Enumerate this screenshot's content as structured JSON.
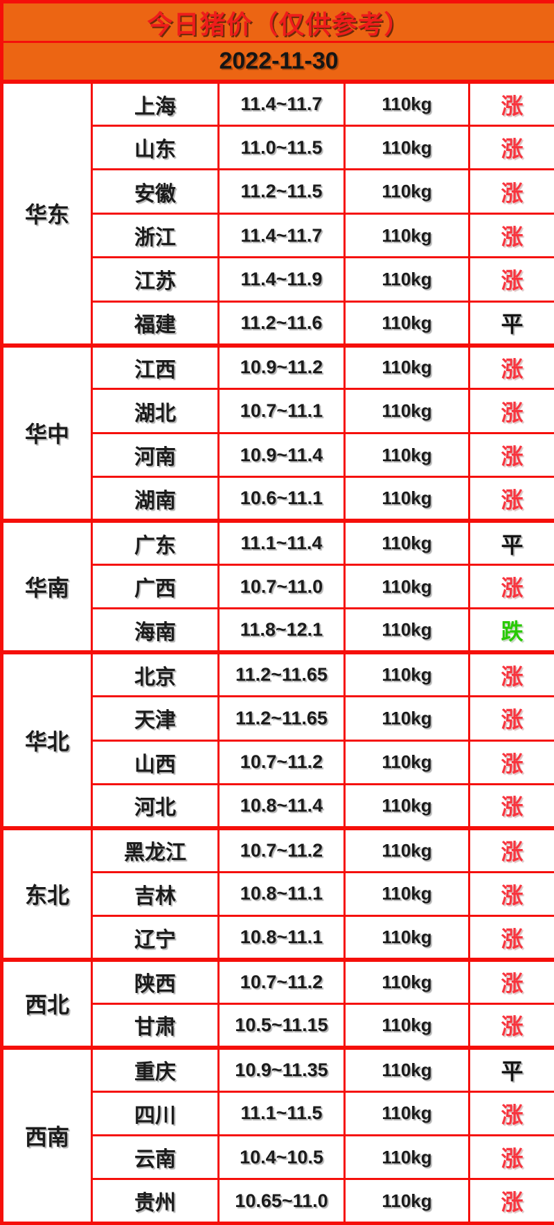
{
  "header": {
    "title": "今日猪价（仅供参考）",
    "date": "2022-11-30"
  },
  "colors": {
    "banner_bg": "#ec6513",
    "grid_red": "#f50f0a",
    "title_red": "#ee1c1b",
    "text_black": "#1b1b1b",
    "trend_up_red": "#f8353f",
    "trend_flat_black": "#141414",
    "trend_down_green": "#28ca00"
  },
  "table": {
    "weight_label": "110kg",
    "regions": [
      {
        "name": "华东",
        "provinces": [
          {
            "province": "上海",
            "price": "11.4~11.7",
            "weight": "110kg",
            "trend": "涨"
          },
          {
            "province": "山东",
            "price": "11.0~11.5",
            "weight": "110kg",
            "trend": "涨"
          },
          {
            "province": "安徽",
            "price": "11.2~11.5",
            "weight": "110kg",
            "trend": "涨"
          },
          {
            "province": "浙江",
            "price": "11.4~11.7",
            "weight": "110kg",
            "trend": "涨"
          },
          {
            "province": "江苏",
            "price": "11.4~11.9",
            "weight": "110kg",
            "trend": "涨"
          },
          {
            "province": "福建",
            "price": "11.2~11.6",
            "weight": "110kg",
            "trend": "平"
          }
        ]
      },
      {
        "name": "华中",
        "provinces": [
          {
            "province": "江西",
            "price": "10.9~11.2",
            "weight": "110kg",
            "trend": "涨"
          },
          {
            "province": "湖北",
            "price": "10.7~11.1",
            "weight": "110kg",
            "trend": "涨"
          },
          {
            "province": "河南",
            "price": "10.9~11.4",
            "weight": "110kg",
            "trend": "涨"
          },
          {
            "province": "湖南",
            "price": "10.6~11.1",
            "weight": "110kg",
            "trend": "涨"
          }
        ]
      },
      {
        "name": "华南",
        "provinces": [
          {
            "province": "广东",
            "price": "11.1~11.4",
            "weight": "110kg",
            "trend": "平"
          },
          {
            "province": "广西",
            "price": "10.7~11.0",
            "weight": "110kg",
            "trend": "涨"
          },
          {
            "province": "海南",
            "price": "11.8~12.1",
            "weight": "110kg",
            "trend": "跌"
          }
        ]
      },
      {
        "name": "华北",
        "provinces": [
          {
            "province": "北京",
            "price": "11.2~11.65",
            "weight": "110kg",
            "trend": "涨"
          },
          {
            "province": "天津",
            "price": "11.2~11.65",
            "weight": "110kg",
            "trend": "涨"
          },
          {
            "province": "山西",
            "price": "10.7~11.2",
            "weight": "110kg",
            "trend": "涨"
          },
          {
            "province": "河北",
            "price": "10.8~11.4",
            "weight": "110kg",
            "trend": "涨"
          }
        ]
      },
      {
        "name": "东北",
        "provinces": [
          {
            "province": "黑龙江",
            "price": "10.7~11.2",
            "weight": "110kg",
            "trend": "涨"
          },
          {
            "province": "吉林",
            "price": "10.8~11.1",
            "weight": "110kg",
            "trend": "涨"
          },
          {
            "province": "辽宁",
            "price": "10.8~11.1",
            "weight": "110kg",
            "trend": "涨"
          }
        ]
      },
      {
        "name": "西北",
        "provinces": [
          {
            "province": "陕西",
            "price": "10.7~11.2",
            "weight": "110kg",
            "trend": "涨"
          },
          {
            "province": "甘肃",
            "price": "10.5~11.15",
            "weight": "110kg",
            "trend": "涨"
          }
        ]
      },
      {
        "name": "西南",
        "provinces": [
          {
            "province": "重庆",
            "price": "10.9~11.35",
            "weight": "110kg",
            "trend": "平"
          },
          {
            "province": "四川",
            "price": "11.1~11.5",
            "weight": "110kg",
            "trend": "涨"
          },
          {
            "province": "云南",
            "price": "10.4~10.5",
            "weight": "110kg",
            "trend": "涨"
          },
          {
            "province": "贵州",
            "price": "10.65~11.0",
            "weight": "110kg",
            "trend": "涨"
          }
        ]
      }
    ]
  },
  "chart_data": {
    "type": "table",
    "title": "今日猪价（仅供参考）",
    "date": "2022-11-30",
    "columns": [
      "region",
      "province",
      "price_range",
      "weight",
      "trend"
    ],
    "rows": [
      [
        "华东",
        "上海",
        "11.4~11.7",
        "110kg",
        "涨"
      ],
      [
        "华东",
        "山东",
        "11.0~11.5",
        "110kg",
        "涨"
      ],
      [
        "华东",
        "安徽",
        "11.2~11.5",
        "110kg",
        "涨"
      ],
      [
        "华东",
        "浙江",
        "11.4~11.7",
        "110kg",
        "涨"
      ],
      [
        "华东",
        "江苏",
        "11.4~11.9",
        "110kg",
        "涨"
      ],
      [
        "华东",
        "福建",
        "11.2~11.6",
        "110kg",
        "平"
      ],
      [
        "华中",
        "江西",
        "10.9~11.2",
        "110kg",
        "涨"
      ],
      [
        "华中",
        "湖北",
        "10.7~11.1",
        "110kg",
        "涨"
      ],
      [
        "华中",
        "河南",
        "10.9~11.4",
        "110kg",
        "涨"
      ],
      [
        "华中",
        "湖南",
        "10.6~11.1",
        "110kg",
        "涨"
      ],
      [
        "华南",
        "广东",
        "11.1~11.4",
        "110kg",
        "平"
      ],
      [
        "华南",
        "广西",
        "10.7~11.0",
        "110kg",
        "涨"
      ],
      [
        "华南",
        "海南",
        "11.8~12.1",
        "110kg",
        "跌"
      ],
      [
        "华北",
        "北京",
        "11.2~11.65",
        "110kg",
        "涨"
      ],
      [
        "华北",
        "天津",
        "11.2~11.65",
        "110kg",
        "涨"
      ],
      [
        "华北",
        "山西",
        "10.7~11.2",
        "110kg",
        "涨"
      ],
      [
        "华北",
        "河北",
        "10.8~11.4",
        "110kg",
        "涨"
      ],
      [
        "东北",
        "黑龙江",
        "10.7~11.2",
        "110kg",
        "涨"
      ],
      [
        "东北",
        "吉林",
        "10.8~11.1",
        "110kg",
        "涨"
      ],
      [
        "东北",
        "辽宁",
        "10.8~11.1",
        "110kg",
        "涨"
      ],
      [
        "西北",
        "陕西",
        "10.7~11.2",
        "110kg",
        "涨"
      ],
      [
        "西北",
        "甘肃",
        "10.5~11.15",
        "110kg",
        "涨"
      ],
      [
        "西南",
        "重庆",
        "10.9~11.35",
        "110kg",
        "平"
      ],
      [
        "西南",
        "四川",
        "11.1~11.5",
        "110kg",
        "涨"
      ],
      [
        "西南",
        "云南",
        "10.4~10.5",
        "110kg",
        "涨"
      ],
      [
        "西南",
        "贵州",
        "10.65~11.0",
        "110kg",
        "涨"
      ]
    ]
  }
}
